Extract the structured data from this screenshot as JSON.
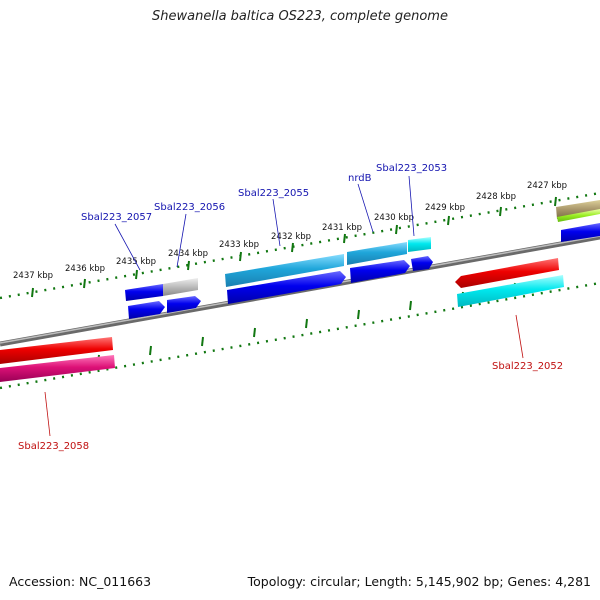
{
  "title": "Shewanella baltica OS223, complete genome",
  "footer": {
    "accession": "Accession: NC_011663",
    "summary": "Topology: circular; Length: 5,145,902 bp; Genes: 4,281"
  },
  "scale_labels": [
    "2427 kbp",
    "2428 kbp",
    "2429 kbp",
    "2430 kbp",
    "2431 kbp",
    "2432 kbp",
    "2433 kbp",
    "2434 kbp",
    "2435 kbp",
    "2436 kbp",
    "2437 kbp"
  ],
  "gene_labels_top": [
    "Sbal223_2053",
    "nrdB",
    "Sbal223_2055",
    "Sbal223_2056",
    "Sbal223_2057"
  ],
  "gene_labels_bottom": [
    "Sbal223_2052",
    "Sbal223_2058"
  ],
  "colors": {
    "blue_cds": "#0000ee",
    "light_blue": "#22aadd",
    "cyan": "#00eeee",
    "red": "#ee0000",
    "magenta": "#dd1177",
    "grey": "#aaaaaa",
    "tick_green": "#117711",
    "backbone": "#888888"
  }
}
